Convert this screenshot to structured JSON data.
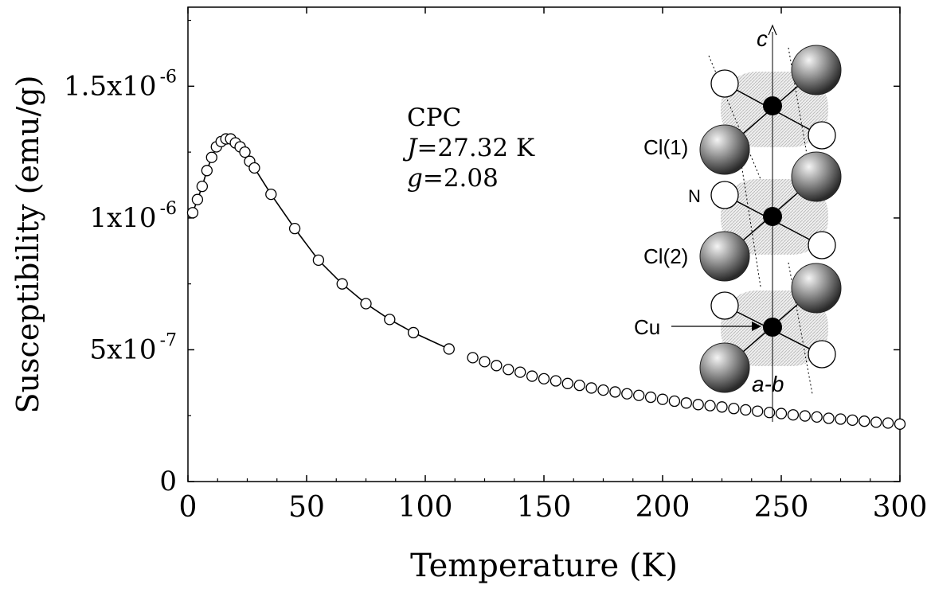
{
  "chart_data": {
    "type": "scatter",
    "xlabel": "Temperature (K)",
    "ylabel": "Susceptibility (emu/g)",
    "xlim": [
      0,
      300
    ],
    "ylim": [
      0,
      1.8e-06
    ],
    "x_ticks": [
      0,
      50,
      100,
      150,
      200,
      250,
      300
    ],
    "x_tick_labels": [
      "0",
      "50",
      "100",
      "150",
      "200",
      "250",
      "300"
    ],
    "y_ticks": [
      0,
      5e-07,
      1e-06,
      1.5e-06
    ],
    "y_tick_labels": [
      {
        "mant": "0",
        "exp": ""
      },
      {
        "mant": "5x10",
        "exp": "-7"
      },
      {
        "mant": "1x10",
        "exp": "-6"
      },
      {
        "mant": "1.5x10",
        "exp": "-6"
      }
    ],
    "grid": false,
    "annotation": {
      "line1": "CPC",
      "line2_sym": "J",
      "line2_val": "=27.32 K",
      "line3_sym": "g",
      "line3_val": "=2.08"
    },
    "series": [
      {
        "marker": "open-circle",
        "x": [
          2,
          4,
          6,
          8,
          10,
          12,
          14,
          16,
          18,
          20,
          22,
          24,
          26,
          28,
          35,
          45,
          55,
          65,
          75,
          85,
          95,
          110,
          120,
          125,
          130,
          135,
          140,
          145,
          150,
          155,
          160,
          165,
          170,
          175,
          180,
          185,
          190,
          195,
          200,
          205,
          210,
          215,
          220,
          225,
          230,
          235,
          240,
          245,
          250,
          255,
          260,
          265,
          270,
          275,
          280,
          285,
          290,
          295,
          300
        ],
        "y": [
          1.02e-06,
          1.07e-06,
          1.12e-06,
          1.18e-06,
          1.23e-06,
          1.27e-06,
          1.29e-06,
          1.3e-06,
          1.3e-06,
          1.285e-06,
          1.27e-06,
          1.25e-06,
          1.215e-06,
          1.19e-06,
          1.09e-06,
          9.6e-07,
          8.4e-07,
          7.5e-07,
          6.75e-07,
          6.15e-07,
          5.65e-07,
          5.03e-07,
          4.7e-07,
          4.55e-07,
          4.4e-07,
          4.25e-07,
          4.15e-07,
          4e-07,
          3.9e-07,
          3.82e-07,
          3.72e-07,
          3.65e-07,
          3.55e-07,
          3.47e-07,
          3.4e-07,
          3.33e-07,
          3.27e-07,
          3.2e-07,
          3.12e-07,
          3.05e-07,
          2.98e-07,
          2.92e-07,
          2.88e-07,
          2.83e-07,
          2.77e-07,
          2.72e-07,
          2.67e-07,
          2.62e-07,
          2.58e-07,
          2.53e-07,
          2.49e-07,
          2.45e-07,
          2.4e-07,
          2.37e-07,
          2.33e-07,
          2.29e-07,
          2.25e-07,
          2.22e-07,
          2.18e-07
        ]
      }
    ],
    "fit_line": {
      "x": [
        2,
        4,
        6,
        8,
        10,
        12,
        14,
        16,
        18,
        20,
        22,
        24,
        26,
        28,
        35,
        45,
        55,
        65,
        75,
        85,
        95,
        110
      ],
      "y": [
        1.02e-06,
        1.07e-06,
        1.12e-06,
        1.18e-06,
        1.23e-06,
        1.27e-06,
        1.29e-06,
        1.3e-06,
        1.3e-06,
        1.285e-06,
        1.27e-06,
        1.25e-06,
        1.215e-06,
        1.19e-06,
        1.09e-06,
        9.6e-07,
        8.4e-07,
        7.5e-07,
        6.75e-07,
        6.15e-07,
        5.65e-07,
        5.03e-07
      ]
    }
  },
  "inset": {
    "axis_c": "c",
    "axis_ab": "a-b",
    "label_cl1": "Cl(1)",
    "label_n": "N",
    "label_cl2": "Cl(2)",
    "label_cu": "Cu"
  }
}
